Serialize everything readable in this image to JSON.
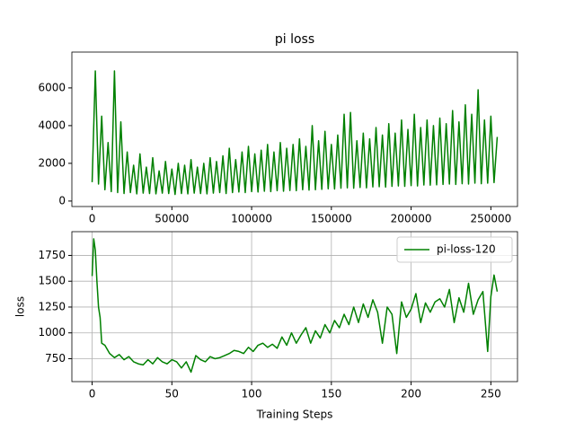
{
  "chart_data": [
    {
      "type": "line",
      "title": "pi loss",
      "color": "#008000",
      "grid": false,
      "x": [
        0,
        2000,
        4000,
        6000,
        8000,
        10000,
        12000,
        14000,
        16000,
        18000,
        20000,
        22000,
        24000,
        26000,
        28000,
        30000,
        32000,
        34000,
        36000,
        38000,
        40000,
        42000,
        44000,
        46000,
        48000,
        50000,
        52000,
        54000,
        56000,
        58000,
        60000,
        62000,
        64000,
        66000,
        68000,
        70000,
        72000,
        74000,
        76000,
        78000,
        80000,
        82000,
        84000,
        86000,
        88000,
        90000,
        92000,
        94000,
        96000,
        98000,
        100000,
        102000,
        104000,
        106000,
        108000,
        110000,
        112000,
        114000,
        116000,
        118000,
        120000,
        122000,
        124000,
        126000,
        128000,
        130000,
        132000,
        134000,
        136000,
        138000,
        140000,
        142000,
        144000,
        146000,
        148000,
        150000,
        152000,
        154000,
        156000,
        158000,
        160000,
        162000,
        164000,
        166000,
        168000,
        170000,
        172000,
        174000,
        176000,
        178000,
        180000,
        182000,
        184000,
        186000,
        188000,
        190000,
        192000,
        194000,
        196000,
        198000,
        200000,
        202000,
        204000,
        206000,
        208000,
        210000,
        212000,
        214000,
        216000,
        218000,
        220000,
        222000,
        224000,
        226000,
        228000,
        230000,
        232000,
        234000,
        236000,
        238000,
        240000,
        242000,
        244000,
        246000,
        248000,
        250000,
        252000,
        254000
      ],
      "values": [
        1000,
        6900,
        900,
        4500,
        600,
        3100,
        500,
        6900,
        450,
        4200,
        400,
        2600,
        450,
        1900,
        380,
        2500,
        420,
        1800,
        400,
        2300,
        380,
        1600,
        420,
        2100,
        400,
        1700,
        350,
        2000,
        400,
        1900,
        380,
        2200,
        420,
        1800,
        400,
        2000,
        380,
        2300,
        420,
        2100,
        450,
        2400,
        400,
        2800,
        450,
        2200,
        480,
        2600,
        450,
        2900,
        500,
        2500,
        480,
        2700,
        520,
        3000,
        500,
        2600,
        550,
        3100,
        520,
        2800,
        560,
        3000,
        550,
        3300,
        600,
        2900,
        580,
        4000,
        600,
        3200,
        620,
        3700,
        650,
        3000,
        640,
        3500,
        680,
        4600,
        700,
        4700,
        680,
        3200,
        720,
        3600,
        700,
        3300,
        750,
        3900,
        760,
        3500,
        740,
        4100,
        780,
        3600,
        800,
        4300,
        780,
        3800,
        820,
        4600,
        800,
        3900,
        850,
        4300,
        840,
        4000,
        860,
        4400,
        880,
        4100,
        900,
        4800,
        880,
        4200,
        920,
        5100,
        900,
        4600,
        950,
        5900,
        920,
        4300,
        950,
        4500,
        980,
        3400
      ],
      "xlim": [
        -12700,
        266700
      ],
      "ylim": [
        -290,
        7900
      ],
      "xticks": [
        0,
        50000,
        100000,
        150000,
        200000,
        250000
      ],
      "yticks": [
        0,
        2000,
        4000,
        6000
      ]
    },
    {
      "type": "line",
      "xlabel": "Training Steps",
      "ylabel": "loss",
      "grid": true,
      "legend": "upper right",
      "x": [
        0,
        1,
        2,
        3,
        4,
        5,
        6,
        8,
        11,
        14,
        17,
        20,
        23,
        26,
        29,
        32,
        35,
        38,
        41,
        44,
        47,
        50,
        53,
        56,
        59,
        62,
        65,
        68,
        71,
        74,
        77,
        80,
        83,
        86,
        89,
        92,
        95,
        98,
        101,
        104,
        107,
        110,
        113,
        116,
        119,
        122,
        125,
        128,
        131,
        134,
        137,
        140,
        143,
        146,
        149,
        152,
        155,
        158,
        161,
        164,
        167,
        170,
        173,
        176,
        179,
        182,
        185,
        188,
        191,
        194,
        197,
        200,
        203,
        206,
        209,
        212,
        215,
        218,
        221,
        224,
        227,
        230,
        233,
        236,
        239,
        242,
        245,
        248,
        250,
        252,
        254
      ],
      "series": [
        {
          "name": "pi-loss-120",
          "color": "#008000",
          "values": [
            1550,
            1910,
            1800,
            1500,
            1250,
            1150,
            900,
            880,
            800,
            760,
            790,
            740,
            770,
            720,
            700,
            690,
            740,
            700,
            760,
            720,
            700,
            740,
            720,
            660,
            720,
            620,
            780,
            740,
            720,
            770,
            750,
            760,
            780,
            800,
            830,
            820,
            800,
            860,
            820,
            880,
            900,
            860,
            890,
            850,
            960,
            880,
            1000,
            900,
            980,
            1050,
            900,
            1020,
            950,
            1080,
            1000,
            1120,
            1050,
            1180,
            1080,
            1250,
            1100,
            1280,
            1150,
            1320,
            1200,
            900,
            1250,
            1180,
            800,
            1300,
            1150,
            1230,
            1380,
            1100,
            1290,
            1200,
            1300,
            1330,
            1250,
            1420,
            1100,
            1340,
            1200,
            1480,
            1180,
            1320,
            1400,
            820,
            1350,
            1560,
            1400
          ]
        }
      ],
      "xlim": [
        -12.7,
        266.7
      ],
      "ylim": [
        528,
        1980
      ],
      "xticks": [
        0,
        50,
        100,
        150,
        200,
        250
      ],
      "yticks": [
        750,
        1000,
        1250,
        1500,
        1750
      ]
    }
  ]
}
